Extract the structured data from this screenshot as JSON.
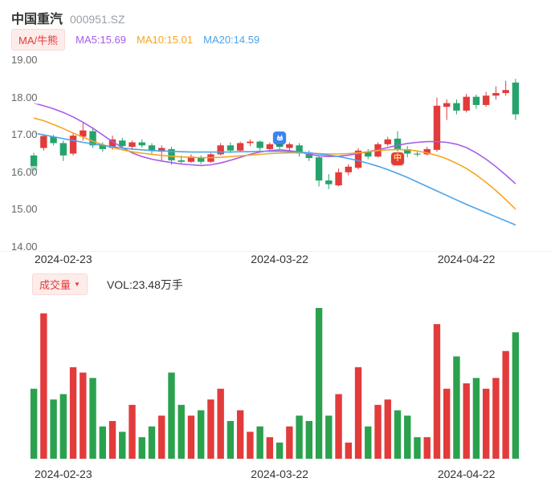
{
  "header": {
    "title": "中国重汽",
    "code": "000951.SZ"
  },
  "legend": {
    "ma_badge": "MA/牛熊",
    "ma5": "MA5:15.69",
    "ma10": "MA10:15.01",
    "ma20": "MA20:14.59"
  },
  "volume_header": {
    "badge": "成交量",
    "badge_arrow": "▼",
    "vol_text": "VOL:23.48万手"
  },
  "colors": {
    "up": "#e23b3b",
    "down": "#26a36c",
    "vol_up": "#e23b3b",
    "vol_down": "#2ba14e",
    "ma5": "#a85ce8",
    "ma10": "#f5a623",
    "ma20": "#4da3e8",
    "badge_red": "#e23b3b"
  },
  "chart_data": {
    "type": "candlestick",
    "ylim": [
      14,
      19
    ],
    "y_ticks": [
      "19.00",
      "18.00",
      "17.00",
      "16.00",
      "15.00",
      "14.00"
    ],
    "x_tick_labels": [
      {
        "label": "2024-02-23",
        "i": 3
      },
      {
        "label": "2024-03-22",
        "i": 25
      },
      {
        "label": "2024-04-22",
        "i": 44
      }
    ],
    "volume_unit": "万手",
    "candles_format": [
      "open",
      "high",
      "low",
      "close",
      "volume_wan"
    ],
    "candles": [
      [
        16.45,
        16.52,
        15.95,
        16.05,
        13
      ],
      [
        16.65,
        17.02,
        16.58,
        16.97,
        27
      ],
      [
        16.95,
        17.0,
        16.72,
        16.78,
        11
      ],
      [
        16.78,
        16.85,
        16.3,
        16.45,
        12
      ],
      [
        16.5,
        17.05,
        16.45,
        16.98,
        17
      ],
      [
        16.95,
        17.32,
        16.85,
        17.12,
        16
      ],
      [
        17.1,
        17.18,
        16.65,
        16.72,
        15
      ],
      [
        16.72,
        16.8,
        16.55,
        16.62,
        6
      ],
      [
        16.65,
        16.98,
        16.6,
        16.88,
        7
      ],
      [
        16.85,
        16.92,
        16.62,
        16.7,
        5
      ],
      [
        16.68,
        16.85,
        16.6,
        16.8,
        10
      ],
      [
        16.8,
        16.88,
        16.66,
        16.72,
        4
      ],
      [
        16.72,
        16.78,
        16.5,
        16.58,
        6
      ],
      [
        16.55,
        16.72,
        16.3,
        16.65,
        8
      ],
      [
        16.62,
        16.68,
        16.2,
        16.32,
        16
      ],
      [
        16.32,
        16.45,
        16.22,
        16.28,
        10
      ],
      [
        16.28,
        16.48,
        16.25,
        16.42,
        8
      ],
      [
        16.4,
        16.45,
        16.22,
        16.28,
        9
      ],
      [
        16.28,
        16.52,
        16.25,
        16.48,
        11
      ],
      [
        16.48,
        16.78,
        16.45,
        16.72,
        13
      ],
      [
        16.72,
        16.8,
        16.52,
        16.58,
        7
      ],
      [
        16.58,
        16.82,
        16.55,
        16.78,
        9
      ],
      [
        16.78,
        16.88,
        16.7,
        16.82,
        5
      ],
      [
        16.82,
        16.85,
        16.58,
        16.65,
        6
      ],
      [
        16.62,
        16.8,
        16.58,
        16.75,
        4
      ],
      [
        16.75,
        16.85,
        16.6,
        16.68,
        3
      ],
      [
        16.65,
        16.8,
        16.55,
        16.75,
        6
      ],
      [
        16.72,
        16.78,
        16.42,
        16.5,
        8
      ],
      [
        16.5,
        16.58,
        16.3,
        16.38,
        7
      ],
      [
        16.4,
        16.45,
        15.62,
        15.78,
        28
      ],
      [
        15.78,
        15.95,
        15.55,
        15.68,
        8
      ],
      [
        15.65,
        16.1,
        15.62,
        16.0,
        12
      ],
      [
        16.0,
        16.22,
        15.92,
        16.15,
        3
      ],
      [
        16.12,
        16.65,
        16.08,
        16.58,
        17
      ],
      [
        16.55,
        16.62,
        16.35,
        16.42,
        6
      ],
      [
        16.42,
        16.8,
        16.4,
        16.75,
        10
      ],
      [
        16.75,
        16.95,
        16.7,
        16.88,
        11
      ],
      [
        16.9,
        17.1,
        16.55,
        16.62,
        9
      ],
      [
        16.62,
        16.7,
        16.4,
        16.5,
        8
      ],
      [
        16.5,
        16.58,
        16.42,
        16.48,
        4
      ],
      [
        16.48,
        16.68,
        16.45,
        16.62,
        4
      ],
      [
        16.6,
        18.0,
        16.55,
        17.78,
        25
      ],
      [
        17.75,
        17.95,
        17.4,
        17.85,
        13
      ],
      [
        17.85,
        17.95,
        17.55,
        17.65,
        19
      ],
      [
        17.65,
        18.1,
        17.6,
        18.02,
        14
      ],
      [
        18.02,
        18.08,
        17.7,
        17.8,
        15
      ],
      [
        17.8,
        18.15,
        17.75,
        18.05,
        13
      ],
      [
        18.05,
        18.3,
        17.95,
        18.12,
        15
      ],
      [
        18.12,
        18.45,
        18.05,
        18.2,
        20
      ],
      [
        18.4,
        18.5,
        17.4,
        17.55,
        23.48
      ]
    ],
    "ma_lines": [
      {
        "name": "MA5",
        "color": "#a85ce8",
        "values": [
          17.85,
          17.78,
          17.7,
          17.6,
          17.48,
          17.34,
          17.18,
          17.0,
          16.82,
          16.66,
          16.52,
          16.42,
          16.35,
          16.3,
          16.26,
          16.22,
          16.2,
          16.18,
          16.2,
          16.25,
          16.32,
          16.4,
          16.48,
          16.54,
          16.58,
          16.6,
          16.58,
          16.54,
          16.48,
          16.44,
          16.42,
          16.43,
          16.46,
          16.5,
          16.55,
          16.6,
          16.66,
          16.72,
          16.77,
          16.8,
          16.82,
          16.82,
          16.8,
          16.75,
          16.66,
          16.52,
          16.35,
          16.15,
          15.93,
          15.69
        ]
      },
      {
        "name": "MA10",
        "color": "#f5a623",
        "values": [
          17.45,
          17.38,
          17.28,
          17.17,
          17.05,
          16.94,
          16.83,
          16.74,
          16.66,
          16.6,
          16.55,
          16.51,
          16.48,
          16.45,
          16.43,
          16.41,
          16.4,
          16.39,
          16.39,
          16.4,
          16.42,
          16.44,
          16.46,
          16.48,
          16.5,
          16.51,
          16.52,
          16.52,
          16.51,
          16.5,
          16.49,
          16.49,
          16.5,
          16.52,
          16.55,
          16.58,
          16.6,
          16.61,
          16.6,
          16.57,
          16.52,
          16.45,
          16.36,
          16.24,
          16.1,
          15.93,
          15.73,
          15.51,
          15.27,
          15.01
        ]
      },
      {
        "name": "MA20",
        "color": "#4da3e8",
        "values": [
          17.05,
          17.0,
          16.95,
          16.9,
          16.85,
          16.8,
          16.76,
          16.72,
          16.68,
          16.65,
          16.62,
          16.6,
          16.58,
          16.57,
          16.56,
          16.55,
          16.54,
          16.54,
          16.54,
          16.54,
          16.54,
          16.55,
          16.55,
          16.56,
          16.56,
          16.56,
          16.55,
          16.54,
          16.52,
          16.49,
          16.46,
          16.42,
          16.37,
          16.31,
          16.24,
          16.16,
          16.07,
          15.97,
          15.86,
          15.74,
          15.62,
          15.5,
          15.38,
          15.26,
          15.14,
          15.03,
          14.92,
          14.81,
          14.7,
          14.59
        ]
      }
    ],
    "event_markers": [
      {
        "icon": "tmall-cat-icon",
        "i": 25,
        "price": 16.92,
        "color": "#3b82f6",
        "label": ""
      },
      {
        "icon": "red-packet-icon",
        "i": 37,
        "price": 16.36,
        "color": "#e23b3b",
        "label": "中"
      }
    ]
  }
}
